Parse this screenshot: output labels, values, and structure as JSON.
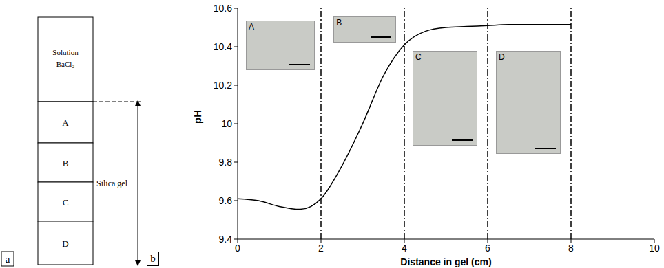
{
  "panel_a": {
    "letter": "a",
    "solution": "Solution BaCl₂",
    "sections": [
      "A",
      "B",
      "C",
      "D"
    ],
    "gel_label": "Silica gel"
  },
  "chart_data": {
    "type": "line",
    "letter": "b",
    "x_label": "Distance in gel (cm)",
    "y_label": "pH",
    "x": [
      0,
      0.5,
      1,
      1.5,
      2,
      2.5,
      3,
      3.5,
      4,
      4.5,
      5,
      5.5,
      6,
      6.5,
      7,
      7.5,
      8
    ],
    "values": [
      9.61,
      9.6,
      9.57,
      9.555,
      9.61,
      9.78,
      10.0,
      10.25,
      10.41,
      10.48,
      10.5,
      10.505,
      10.51,
      10.515,
      10.515,
      10.515,
      10.515
    ],
    "color": "#000000",
    "line_style": "solid",
    "grid": false,
    "xlim": [
      0,
      10
    ],
    "xticks": [
      0,
      2,
      4,
      6,
      8,
      10
    ],
    "ylim": [
      9.4,
      10.6
    ],
    "yticks": [
      9.4,
      9.6,
      9.8,
      10,
      10.2,
      10.4,
      10.6
    ],
    "vertical_lines": [
      2,
      4,
      6,
      8
    ],
    "insets": [
      "A",
      "B",
      "C",
      "D"
    ]
  }
}
